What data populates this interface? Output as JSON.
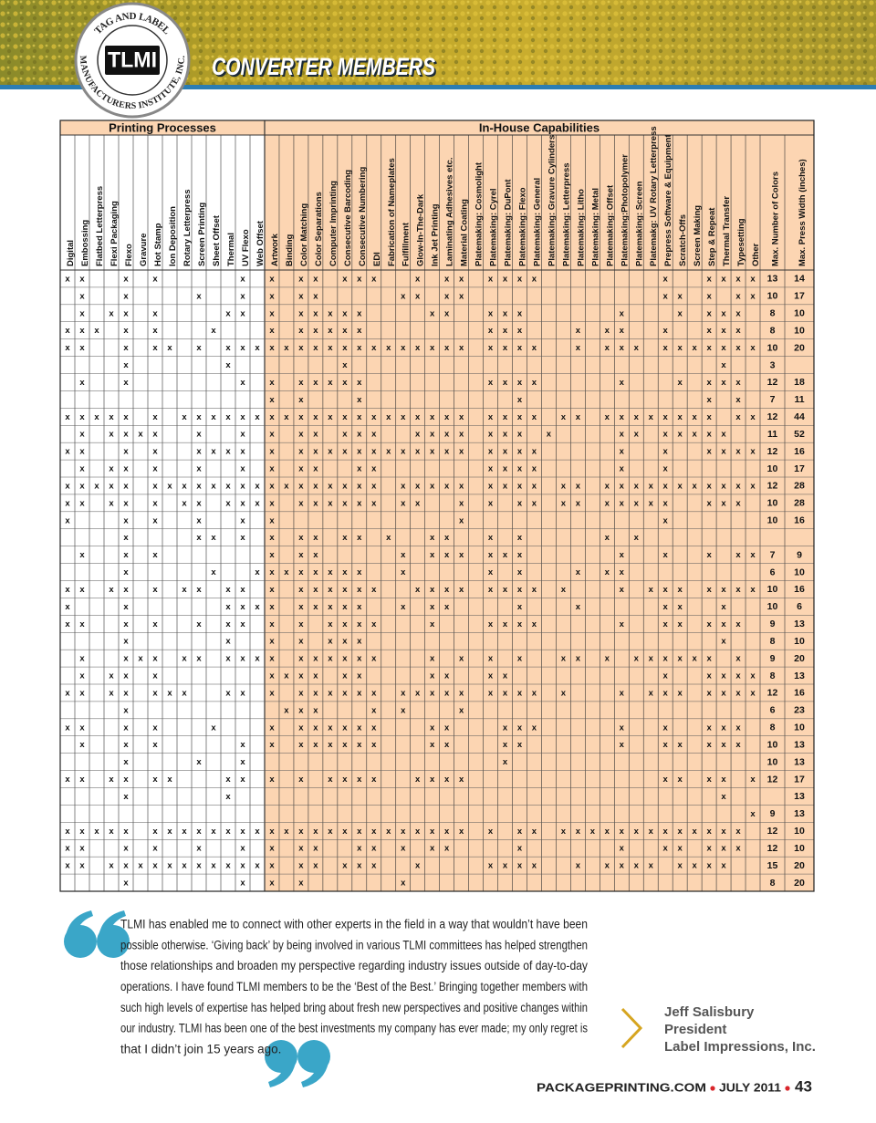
{
  "header": {
    "title": "CONVERTER MEMBERS",
    "logo": {
      "top": "TAG AND LABEL",
      "bottom": "MANUFACTURERS INSTITUTE, INC.",
      "mark": "TLMI"
    }
  },
  "table": {
    "groups": [
      "Printing Processes",
      "In-House Capabilities"
    ],
    "print_columns": [
      "Digital",
      "Embossing",
      "Flatbed Letterpress",
      "Flexi Packaging",
      "Flexo",
      "Gravure",
      "Hot Stamp",
      "Ion Deposition",
      "Rotary Letterpress",
      "Screen Printing",
      "Sheet Offset",
      "Thermal",
      "UV Flexo",
      "Web Offset"
    ],
    "house_columns": [
      "Artwork",
      "Binding",
      "Color Matching",
      "Color Separations",
      "Computer Imprinting",
      "Consecutive Barcoding",
      "Consecutive Numbering",
      "EDI",
      "Fabrication of Nameplates",
      "Fulfillment",
      "Glow-In-The-Dark",
      "Ink Jet Printing",
      "Laminating Adhesives  etc.",
      "Material Coating",
      "Platemaking: Cosmolight",
      "Platemaking: Cyrel",
      "Platemaking: DuPont",
      "Platemaking: Flexo",
      "Platemaking: General",
      "Platemaking: Gravure Cylinders",
      "Platemaking: Letterpress",
      "Platemaking: Litho",
      "Platemaking: Metal",
      "Platemaking: Offset",
      "Platemaking:Photopolymer",
      "Platemaking: Screen",
      "Platemakg: UV Rotary Letterpress",
      "Prepress Software & Equipment",
      "Scratch-Offs",
      "Screen Making",
      "Step & Repeat",
      "Thermal Transfer",
      "Typesetting",
      "Other"
    ],
    "max_columns": [
      "Max. Number of Colors",
      "Max. Press Width (inches)"
    ],
    "rows": [
      {
        "print": "xx  x x     x ",
        "house": "x xx xxx  x xx xxxx        x  xxxx",
        "colors": 13,
        "width": 14
      },
      {
        "print": " x  x    x  x ",
        "house": "x xx     xx xx             xx x xx",
        "colors": 10,
        "width": 17
      },
      {
        "print": " x xx x    xx ",
        "house": "x xxxxx    xx  xxx      x   x xxx ",
        "colors": 8,
        "width": 10
      },
      {
        "print": "xxx x x   x   ",
        "house": "x xxxxx        xxx   x xx  x  xxx ",
        "colors": 8,
        "width": 10
      },
      {
        "print": "xx  x xx x xxx",
        "house": "xxxxxxxxxxxxxx xxxx  x xxx xxxxxxx",
        "colors": 10,
        "width": 20
      },
      {
        "print": "    x      x  ",
        "house": "     x                         x  ",
        "colors": 3,
        "width": null
      },
      {
        "print": " x  x       x ",
        "house": "x xxxxx        xxxx     x   x xxx ",
        "colors": 12,
        "width": 18
      },
      {
        "print": "              ",
        "house": "x x   x          x            x x ",
        "colors": 7,
        "width": 11
      },
      {
        "print": "xxxxx x xxxxxx",
        "house": "xxxxxxxxxxxxxx xxxx xx xxxxxxxx xx",
        "colors": 12,
        "width": 44
      },
      {
        "print": " x xxxx  x  x ",
        "house": "x xx xxx  xxxx xxx x    xx xxxxx  ",
        "colors": 11,
        "width": 52
      },
      {
        "print": "xx  x x  xxxx ",
        "house": "x xxxxxxxxxxxx xxxx     x  x  xxxx",
        "colors": 12,
        "width": 16
      },
      {
        "print": " x xx x  x  x ",
        "house": "x xx  xx       xxxx     x  x      ",
        "colors": 10,
        "width": 17
      },
      {
        "print": "xxxxx xxxxxxxx",
        "house": "xxxxxxxx xxxxx xxxx xx xxxxxxxxxxx",
        "colors": 12,
        "width": 28
      },
      {
        "print": "xx xx x xx xxx",
        "house": "x xxxxxx xx  x x xx xx xxxxx  xxx ",
        "colors": 10,
        "width": 28
      },
      {
        "print": "x   x x  x  x ",
        "house": "x            x             x      ",
        "colors": 10,
        "width": 16
      },
      {
        "print": "    x    xx x ",
        "house": "x xx xx x  xx  x x     x x        ",
        "colors": null,
        "width": null
      },
      {
        "print": " x  x x       ",
        "house": "x xx     x xxx xxx      x  x  x xx",
        "colors": 7,
        "width": 9
      },
      {
        "print": "    x     x  x",
        "house": "xxxxxxx  x     x x   x xx         ",
        "colors": 6,
        "width": 10
      },
      {
        "print": "xx xx x xx xx ",
        "house": "x xxxxxx  xxxx xxxx x   x xxx xxxx",
        "colors": 10,
        "width": 16
      },
      {
        "print": "x   x      xxx",
        "house": "x xxxxx  x xx    x   x     xx  x  ",
        "colors": 10,
        "width": 6
      },
      {
        "print": "xx  x x  x xx ",
        "house": "x x xxxx   x   xxxx     x  xx xxx ",
        "colors": 9,
        "width": 13
      },
      {
        "print": "    x      x  ",
        "house": "x x xxx                        x  ",
        "colors": 8,
        "width": 10
      },
      {
        "print": " x  xxx xx xxx",
        "house": "x xxxxxx   x x x x  xx x xxxxxx x ",
        "colors": 9,
        "width": 20
      },
      {
        "print": " x xx x       ",
        "house": "xxxx xx    xx  xx          x  xxxx",
        "colors": 8,
        "width": 13
      },
      {
        "print": "xx xx xxx  xx ",
        "house": "x xxxxxx xxxxx xxxx x   x xxx xxxx",
        "colors": 12,
        "width": 16
      },
      {
        "print": "    x         ",
        "house": " xxx   x x   x                    ",
        "colors": 6,
        "width": 23
      },
      {
        "print": "xx  x x   x   ",
        "house": "x xxxxxx   xx   xxx     x  x  xxx ",
        "colors": 8,
        "width": 10
      },
      {
        "print": " x  x x     x ",
        "house": "x xxxxxx   xx   xx      x  xx xxx ",
        "colors": 10,
        "width": 13
      },
      {
        "print": "    x    x  x ",
        "house": "                x                 ",
        "colors": 10,
        "width": 13
      },
      {
        "print": "xx xx xx   xx ",
        "house": "x x xxxx  xxxx             xx xx x",
        "colors": 12,
        "width": 17
      },
      {
        "print": "    x      x  ",
        "house": "                               x  ",
        "colors": null,
        "width": 13
      },
      {
        "print": "              ",
        "house": "                                 x",
        "colors": 9,
        "width": 13
      },
      {
        "print": "xxxxx xxxxxxxx",
        "house": "xxxxxxxxxxxxxx x xx xxxxxxxxxxxxx ",
        "colors": 12,
        "width": 10
      },
      {
        "print": "xx  x x  x  x ",
        "house": "x xx  xx x xx    x      x  xx xxx ",
        "colors": 12,
        "width": 10
      },
      {
        "print": "xx xxxxxxxxxxx",
        "house": "x xx xxx  x    xxxx  x xxxx xxxx  ",
        "colors": 15,
        "width": 20
      },
      {
        "print": "    x       x ",
        "house": "x x      x                        ",
        "colors": 8,
        "width": 20
      }
    ]
  },
  "quote": {
    "lines": [
      "TLMI has enabled me to connect with other experts in the field in a way that wouldn’t have been",
      "possible otherwise. ‘Giving back’ by being involved in various TLMI committees has helped strengthen",
      "those relationships and broaden my perspective regarding industry issues outside of day-to-day",
      "operations. I have found TLMI members to be the ‘Best of the Best.’ Bringing together members with",
      "such high levels of expertise has helped bring about fresh new perspectives and positive changes within",
      "our industry. TLMI has been one of the best investments my company has ever made; my only regret is",
      "that I didn’t join 15 years ago."
    ]
  },
  "attribution": [
    "Jeff Salisbury",
    "President",
    "Label Impressions, Inc."
  ],
  "footer": {
    "site": "PACKAGEPRINTING.COM",
    "issue": "JULY 2011",
    "page": "43"
  }
}
